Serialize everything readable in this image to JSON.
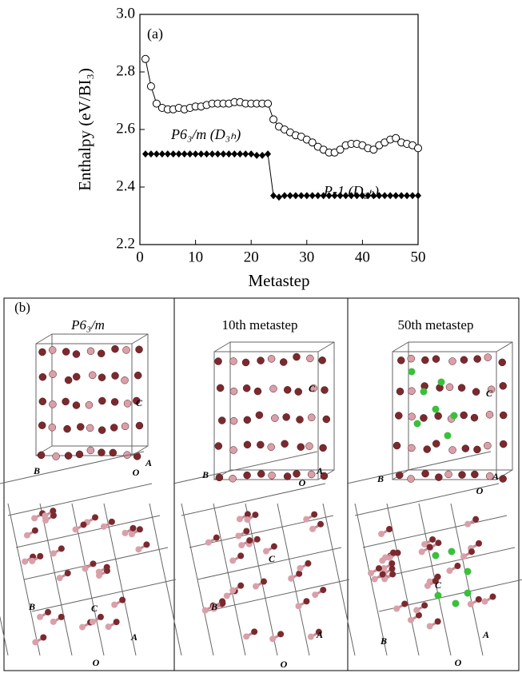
{
  "chart_data": {
    "type": "line",
    "panel_label": "(a)",
    "xlabel": "Metastep",
    "ylabel": "Enthalpy (eV/BI₃)",
    "annotations": [
      "P6₃/m (D₃ₕ)",
      "P-1 (D₂ₕ)"
    ],
    "x": [
      1,
      2,
      3,
      4,
      5,
      6,
      7,
      8,
      9,
      10,
      11,
      12,
      13,
      14,
      15,
      16,
      17,
      18,
      19,
      20,
      21,
      22,
      23,
      24,
      25,
      26,
      27,
      28,
      29,
      30,
      31,
      32,
      33,
      34,
      35,
      36,
      37,
      38,
      39,
      40,
      41,
      42,
      43,
      44,
      45,
      46,
      47,
      48,
      49,
      50
    ],
    "series": [
      {
        "color": "#000000",
        "marker": "open-circle",
        "values": [
          2.845,
          2.75,
          2.69,
          2.675,
          2.67,
          2.67,
          2.675,
          2.67,
          2.675,
          2.68,
          2.68,
          2.685,
          2.69,
          2.69,
          2.69,
          2.69,
          2.695,
          2.695,
          2.69,
          2.69,
          2.69,
          2.69,
          2.69,
          2.635,
          2.61,
          2.6,
          2.59,
          2.58,
          2.575,
          2.565,
          2.555,
          2.54,
          2.53,
          2.52,
          2.52,
          2.53,
          2.545,
          2.55,
          2.55,
          2.545,
          2.535,
          2.53,
          2.545,
          2.555,
          2.565,
          2.57,
          2.555,
          2.55,
          2.545,
          2.535
        ]
      },
      {
        "color": "#000000",
        "marker": "filled-diamond",
        "values": [
          2.515,
          2.515,
          2.515,
          2.515,
          2.515,
          2.515,
          2.515,
          2.515,
          2.515,
          2.515,
          2.515,
          2.515,
          2.515,
          2.515,
          2.515,
          2.515,
          2.515,
          2.515,
          2.515,
          2.515,
          2.51,
          2.51,
          2.515,
          2.37,
          2.365,
          2.37,
          2.37,
          2.37,
          2.37,
          2.37,
          2.37,
          2.37,
          2.37,
          2.37,
          2.37,
          2.37,
          2.37,
          2.37,
          2.37,
          2.37,
          2.37,
          2.37,
          2.37,
          2.37,
          2.37,
          2.37,
          2.37,
          2.37,
          2.37,
          2.37
        ]
      }
    ],
    "xlim": [
      0,
      50
    ],
    "xticks": [
      0,
      10,
      20,
      30,
      40,
      50
    ],
    "ylim": [
      2.2,
      3.0
    ],
    "yticks": [
      2.2,
      2.4,
      2.6,
      2.8,
      {
        "value": 3,
        "label": "3.0"
      }
    ]
  },
  "panel_b": {
    "label": "(b)",
    "panels": [
      {
        "title": "P6₃/m",
        "top_labels": [
          "C",
          "B",
          "O",
          "A"
        ],
        "bottom_labels": [
          "B",
          "C",
          "A",
          "O"
        ]
      },
      {
        "title": "10th  metastep",
        "top_labels": [
          "C",
          "B",
          "O",
          "A"
        ],
        "bottom_labels": [
          "C",
          "B",
          "A",
          "O"
        ]
      },
      {
        "title": "50th  metastep",
        "top_labels": [
          "C",
          "B",
          "O",
          "A"
        ],
        "bottom_labels": [
          "C",
          "B",
          "A",
          "O"
        ]
      }
    ]
  }
}
